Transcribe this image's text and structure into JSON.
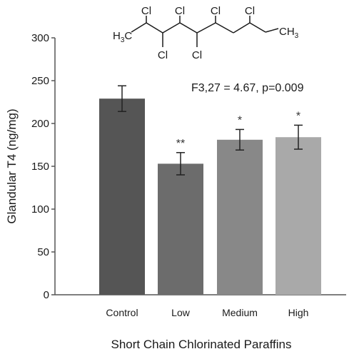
{
  "chart_data": {
    "type": "bar",
    "categories": [
      "Control",
      "Low",
      "Medium",
      "High"
    ],
    "values": [
      229,
      153,
      181,
      184
    ],
    "errors": [
      15,
      13,
      12,
      14
    ],
    "significance": [
      "",
      "**",
      "*",
      "*"
    ],
    "bar_colors": [
      "#555555",
      "#6c6c6c",
      "#888888",
      "#a9a9a9"
    ],
    "ylabel": "Glandular T4 (ng/mg)",
    "xlabel": "Short Chain Chlorinated Paraffins",
    "ylim": [
      0,
      300
    ],
    "yticks": [
      0,
      50,
      100,
      150,
      200,
      250,
      300
    ],
    "grid": false,
    "annotation": "F3,27 = 4.67, p=0.009"
  },
  "structure_labels": {
    "cl_1": "Cl",
    "cl_2": "Cl",
    "cl_3": "Cl",
    "cl_4": "Cl",
    "cl_5": "Cl",
    "cl_6": "Cl",
    "left_end_main": "H",
    "left_end_sub": "3",
    "left_end_tail": "C",
    "right_end_main": "CH",
    "right_end_sub": "3"
  }
}
